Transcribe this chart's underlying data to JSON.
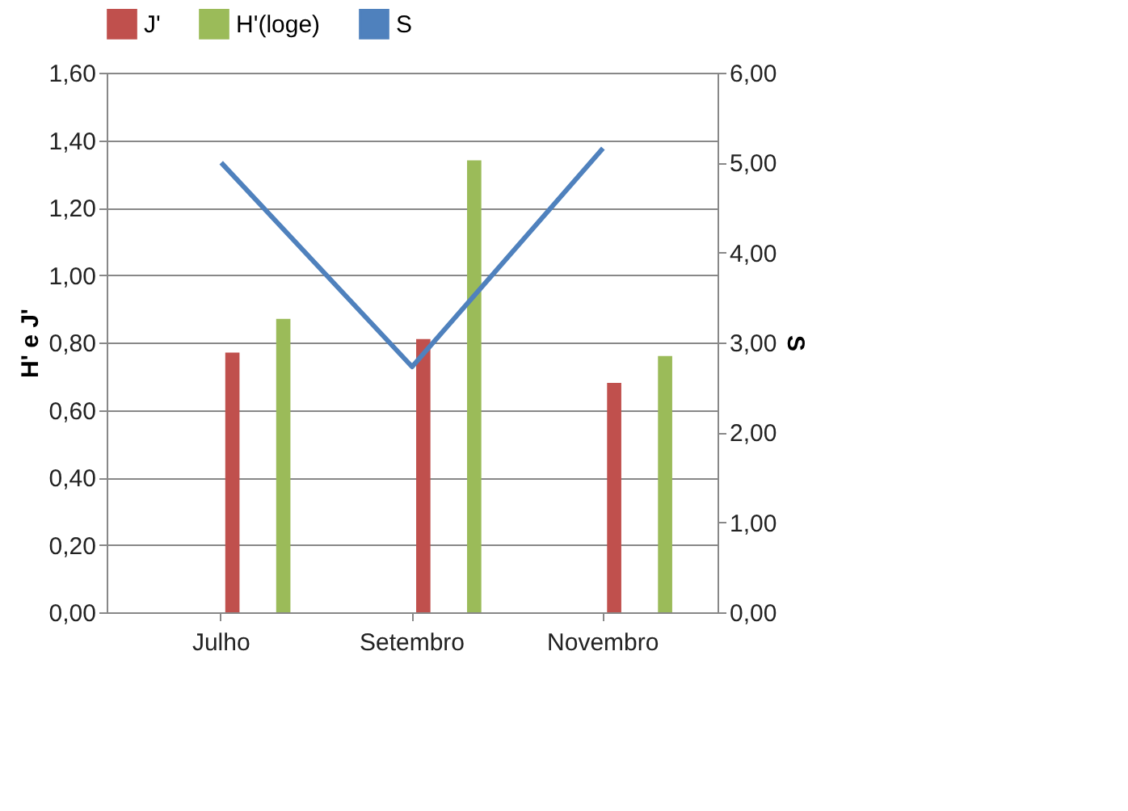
{
  "chart_data": {
    "type": "bar",
    "categories": [
      "Julho",
      "Setembro",
      "Novembro"
    ],
    "series": [
      {
        "name": "J'",
        "color": "#c0504d",
        "values": [
          0.77,
          0.81,
          0.68
        ]
      },
      {
        "name": "H'(loge)",
        "color": "#9bbb59",
        "values": [
          0.87,
          1.34,
          0.76
        ]
      },
      {
        "name": "S",
        "type": "line",
        "axis": "y2",
        "color": "#4f81bd",
        "values": [
          5.0,
          2.73,
          5.16
        ]
      }
    ],
    "ylabel": "H' e J'",
    "y2label": "S",
    "ylim": [
      0,
      1.6
    ],
    "yticks": [
      {
        "value": 0,
        "label": "0,00"
      },
      {
        "value": 0.2,
        "label": "0,20"
      },
      {
        "value": 0.4,
        "label": "0,40"
      },
      {
        "value": 0.6,
        "label": "0,60"
      },
      {
        "value": 0.8,
        "label": "0,80"
      },
      {
        "value": 1.0,
        "label": "1,00"
      },
      {
        "value": 1.2,
        "label": "1,20"
      },
      {
        "value": 1.4,
        "label": "1,40"
      },
      {
        "value": 1.6,
        "label": "1,60"
      }
    ],
    "y2lim": [
      0,
      6
    ],
    "y2ticks": [
      {
        "value": 0,
        "label": "0,00"
      },
      {
        "value": 1,
        "label": "1,00"
      },
      {
        "value": 2,
        "label": "2,00"
      },
      {
        "value": 3,
        "label": "3,00"
      },
      {
        "value": 4,
        "label": "4,00"
      },
      {
        "value": 5,
        "label": "5,00"
      },
      {
        "value": 6,
        "label": "6,00"
      }
    ],
    "grid": "y",
    "legend": "top"
  }
}
